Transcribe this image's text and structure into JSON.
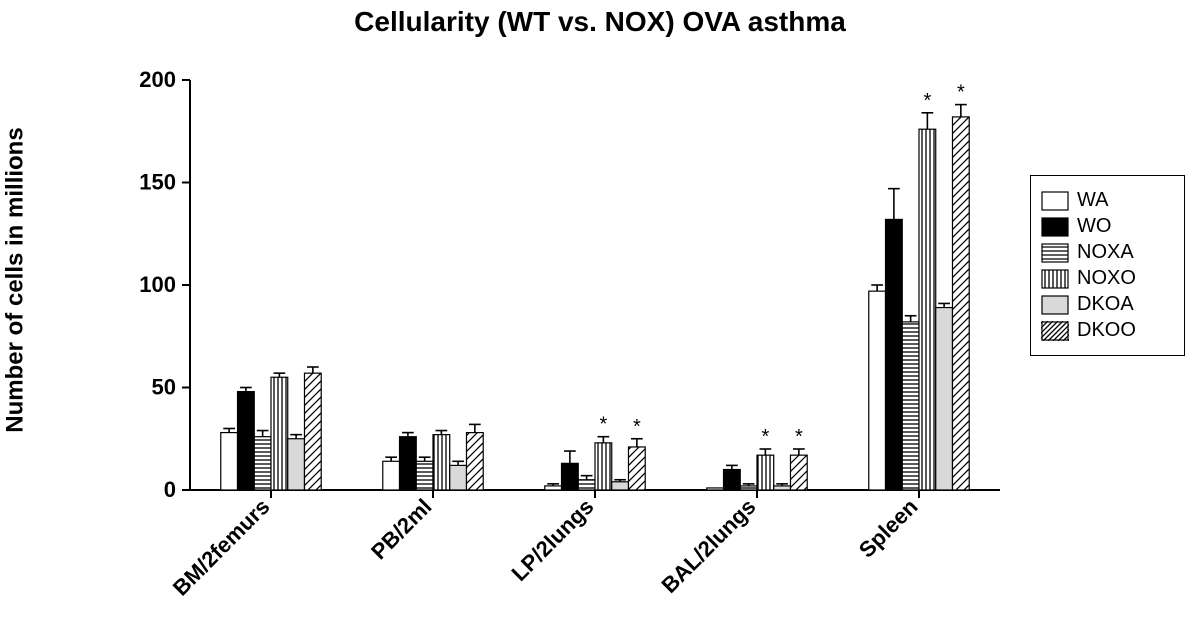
{
  "chart": {
    "type": "bar",
    "title": "Cellularity (WT vs. NOX) OVA asthma",
    "title_fontsize": 28,
    "ylabel": "Number of cells in millions",
    "ylabel_fontsize": 24,
    "ylim": [
      0,
      200
    ],
    "ytick_step": 50,
    "yticks": [
      0,
      50,
      100,
      150,
      200
    ],
    "background_color": "#ffffff",
    "axis_color": "#000000",
    "text_color": "#000000",
    "label_fontsize": 22,
    "bar_width": 0.62,
    "bar_outline_color": "#000000",
    "error_bar_color": "#000000",
    "categories": [
      "BM/2femurs",
      "PB/2ml",
      "LP/2lungs",
      "BAL/2lungs",
      "Spleen"
    ],
    "series": [
      {
        "name": "WA",
        "legend": "WA",
        "fill": "solid",
        "color": "#ffffff"
      },
      {
        "name": "WO",
        "legend": "WO",
        "fill": "solid",
        "color": "#000000"
      },
      {
        "name": "NOXA",
        "legend": "NOXA",
        "fill": "hatch_horiz",
        "color": "#000000",
        "bg": "#ffffff"
      },
      {
        "name": "NOXO",
        "legend": "NOXO",
        "fill": "hatch_vert",
        "color": "#000000",
        "bg": "#ffffff"
      },
      {
        "name": "DKOA",
        "legend": "DKOA",
        "fill": "solid",
        "color": "#d9d9d9"
      },
      {
        "name": "DKOO",
        "legend": "DKOO",
        "fill": "hatch_diag",
        "color": "#000000",
        "bg": "#ffffff"
      }
    ],
    "values": {
      "WA": [
        28,
        14,
        2,
        1,
        97
      ],
      "WO": [
        48,
        26,
        13,
        10,
        132
      ],
      "NOXA": [
        26,
        14,
        5,
        2,
        82
      ],
      "NOXO": [
        55,
        27,
        23,
        17,
        176
      ],
      "DKOA": [
        25,
        12,
        4,
        2,
        89
      ],
      "DKOO": [
        57,
        28,
        21,
        17,
        182
      ]
    },
    "errors_up": {
      "WA": [
        2,
        2,
        1,
        0,
        3
      ],
      "WO": [
        2,
        2,
        6,
        2,
        15
      ],
      "NOXA": [
        3,
        2,
        2,
        1,
        3
      ],
      "NOXO": [
        2,
        2,
        3,
        3,
        8
      ],
      "DKOA": [
        2,
        2,
        1,
        1,
        2
      ],
      "DKOO": [
        3,
        4,
        4,
        3,
        6
      ]
    },
    "significance_marks": [
      {
        "category": 2,
        "series": "NOXO",
        "label": "*"
      },
      {
        "category": 2,
        "series": "DKOO",
        "label": "*"
      },
      {
        "category": 3,
        "series": "NOXO",
        "label": "*"
      },
      {
        "category": 3,
        "series": "DKOO",
        "label": "*"
      },
      {
        "category": 4,
        "series": "NOXO",
        "label": "*"
      },
      {
        "category": 4,
        "series": "DKOO",
        "label": "*"
      }
    ],
    "xlabel_rotation_deg": 45
  }
}
